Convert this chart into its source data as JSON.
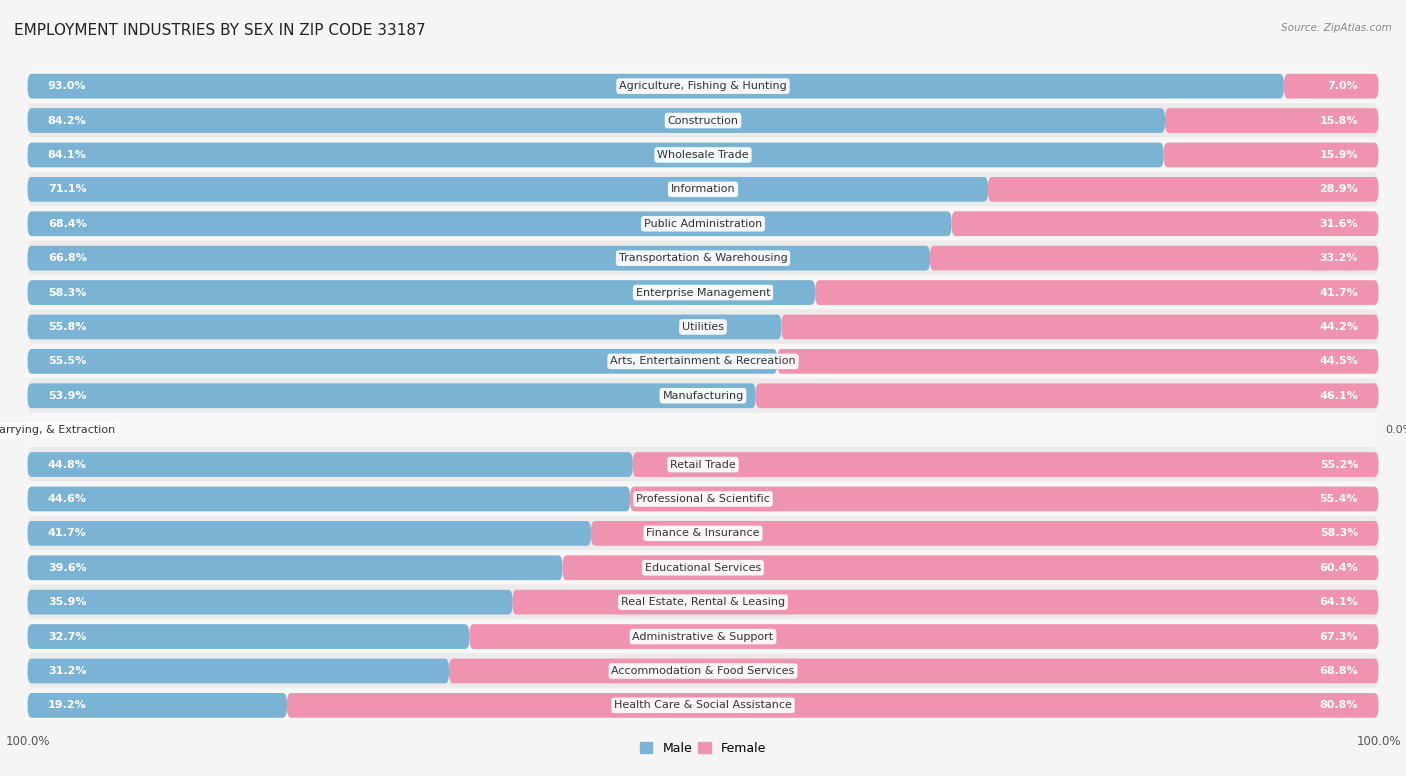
{
  "title": "EMPLOYMENT INDUSTRIES BY SEX IN ZIP CODE 33187",
  "source": "Source: ZipAtlas.com",
  "industries": [
    "Agriculture, Fishing & Hunting",
    "Construction",
    "Wholesale Trade",
    "Information",
    "Public Administration",
    "Transportation & Warehousing",
    "Enterprise Management",
    "Utilities",
    "Arts, Entertainment & Recreation",
    "Manufacturing",
    "Mining, Quarrying, & Extraction",
    "Retail Trade",
    "Professional & Scientific",
    "Finance & Insurance",
    "Educational Services",
    "Real Estate, Rental & Leasing",
    "Administrative & Support",
    "Accommodation & Food Services",
    "Health Care & Social Assistance"
  ],
  "male_pct": [
    93.0,
    84.2,
    84.1,
    71.1,
    68.4,
    66.8,
    58.3,
    55.8,
    55.5,
    53.9,
    0.0,
    44.8,
    44.6,
    41.7,
    39.6,
    35.9,
    32.7,
    31.2,
    19.2
  ],
  "female_pct": [
    7.0,
    15.8,
    15.9,
    28.9,
    31.6,
    33.2,
    41.7,
    44.2,
    44.5,
    46.1,
    0.0,
    55.2,
    55.4,
    58.3,
    60.4,
    64.1,
    67.3,
    68.8,
    80.8
  ],
  "male_color": "#7ab3d4",
  "female_color": "#f093b0",
  "background_row_even": "#f7f7f7",
  "background_row_odd": "#ebebeb",
  "title_fontsize": 11,
  "label_fontsize": 8,
  "pct_fontsize": 8,
  "bar_height": 0.72
}
